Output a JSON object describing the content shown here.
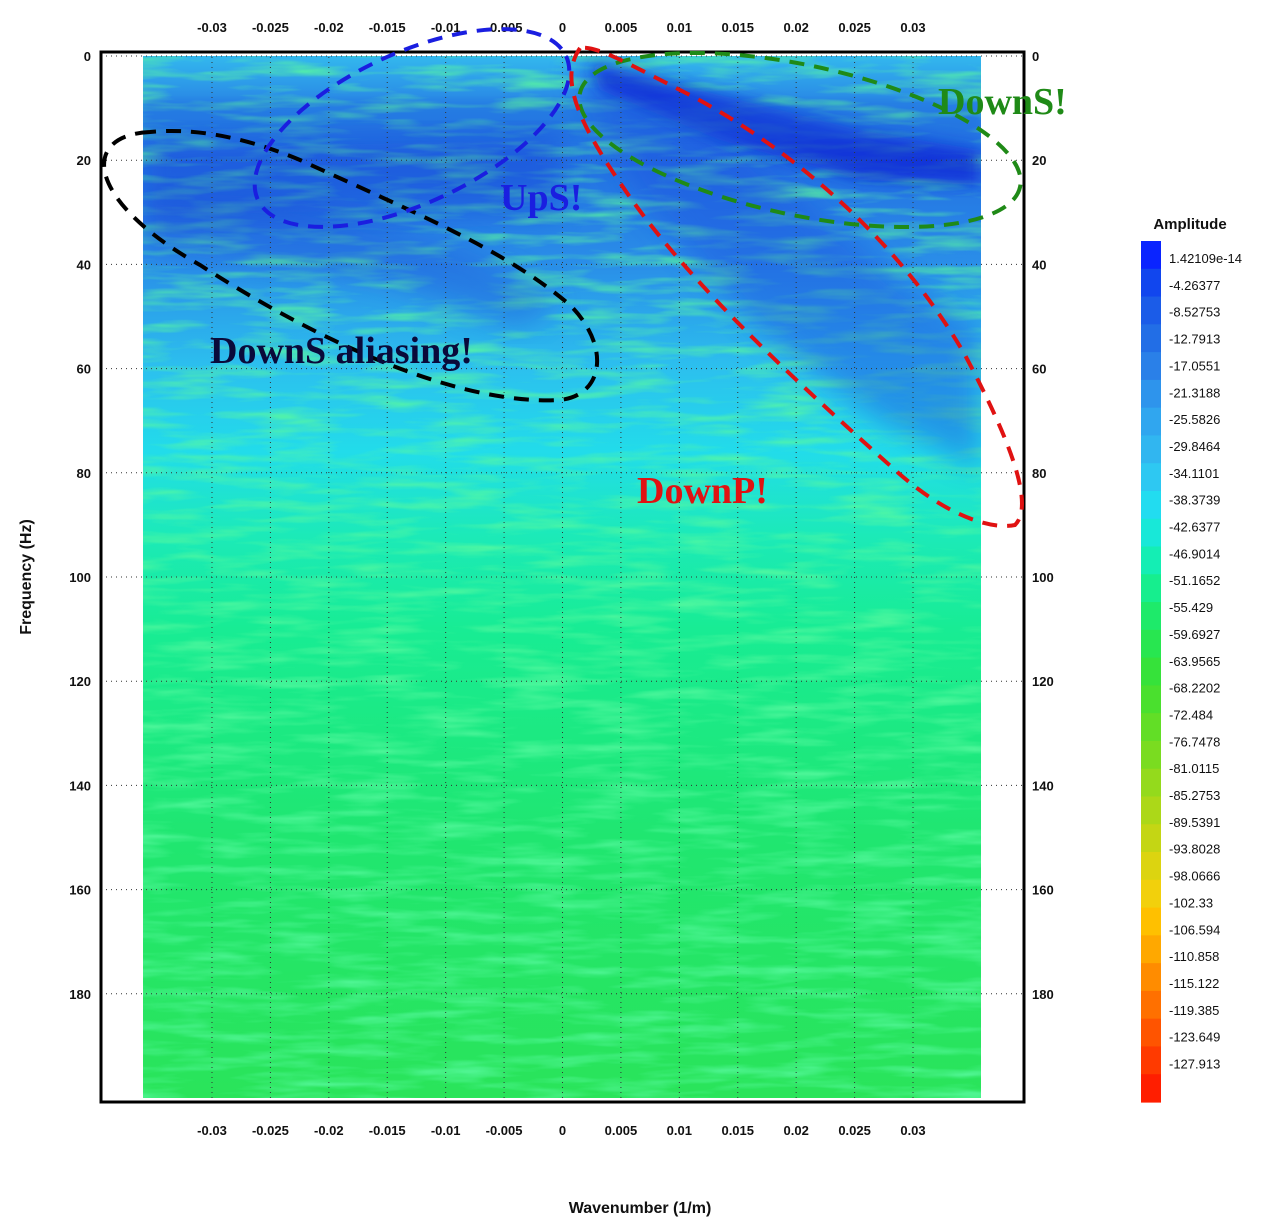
{
  "chart_data": {
    "type": "heatmap",
    "xlabel": "Wavenumber (1/m)",
    "ylabel": "Frequency (Hz)",
    "x_ticks": [
      -0.03,
      -0.025,
      -0.02,
      -0.015,
      -0.01,
      -0.005,
      0,
      0.005,
      0.01,
      0.015,
      0.02,
      0.025,
      0.03
    ],
    "x_tick_labels": [
      "-0.03",
      "-0.025",
      "-0.02",
      "-0.015",
      "-0.01",
      "-0.005",
      "0",
      "0.005",
      "0.01",
      "0.015",
      "0.02",
      "0.025",
      "0.03"
    ],
    "y_ticks": [
      0,
      20,
      40,
      60,
      80,
      100,
      120,
      140,
      160,
      180
    ],
    "y_tick_labels": [
      "0",
      "20",
      "40",
      "60",
      "80",
      "100",
      "120",
      "140",
      "160",
      "180"
    ],
    "xlim": [
      -0.0395,
      0.0395
    ],
    "ylim": [
      0,
      200
    ],
    "y_inverted": true,
    "data_xlim": [
      -0.0355,
      0.0355
    ],
    "grid": true,
    "colorbar": {
      "title": "Amplitude",
      "levels": [
        "1.42109e-14",
        "-4.26377",
        "-8.52753",
        "-12.7913",
        "-17.0551",
        "-21.3188",
        "-25.5826",
        "-29.8464",
        "-34.1101",
        "-38.3739",
        "-42.6377",
        "-46.9014",
        "-51.1652",
        "-55.429",
        "-59.6927",
        "-63.9565",
        "-68.2202",
        "-72.484",
        "-76.7478",
        "-81.0115",
        "-85.2753",
        "-89.5391",
        "-93.8028",
        "-98.0666",
        "-102.33",
        "-106.594",
        "-110.858",
        "-115.122",
        "-119.385",
        "-123.649",
        "-127.913"
      ],
      "colors": [
        "#0a24ff",
        "#1146ee",
        "#1b5ce8",
        "#226ee6",
        "#2a80e8",
        "#2e94ec",
        "#30a6ef",
        "#31b6f0",
        "#2ec8f2",
        "#22dcf0",
        "#18e8d8",
        "#14eeb4",
        "#16ee8e",
        "#1eea6a",
        "#28e650",
        "#36e23a",
        "#4ae02e",
        "#62de26",
        "#7adc20",
        "#94da1c",
        "#acd818",
        "#c4d614",
        "#dcd410",
        "#f2d00c",
        "#ffc000",
        "#ffa800",
        "#ff8c00",
        "#ff7000",
        "#ff5400",
        "#ff3a00",
        "#ff1e00"
      ]
    },
    "annotations": [
      {
        "text": "DownS!",
        "color": "#1f8a17"
      },
      {
        "text": "UpS!",
        "color": "#1a1ee0"
      },
      {
        "text": "DownS aliasing!",
        "color": "#0a0a3a"
      },
      {
        "text": "DownP!",
        "color": "#e01212"
      }
    ]
  }
}
